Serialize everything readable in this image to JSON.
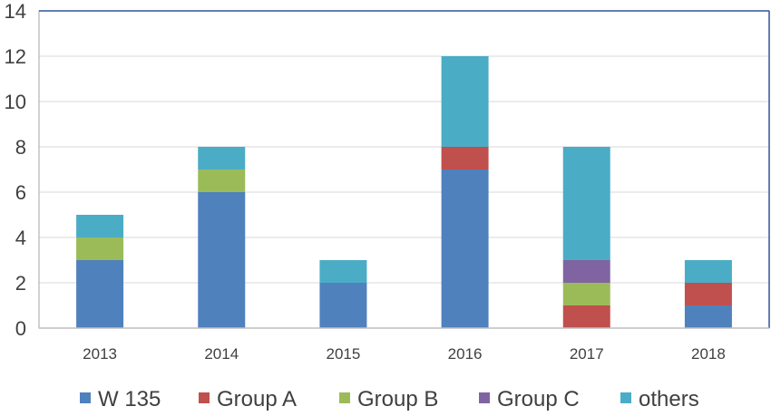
{
  "chart_data": {
    "type": "bar",
    "stacked": true,
    "categories": [
      "2013",
      "2014",
      "2015",
      "2016",
      "2017",
      "2018"
    ],
    "series": [
      {
        "name": "W 135",
        "color": "#4F81BD",
        "values": [
          3,
          6,
          2,
          7,
          0,
          1
        ]
      },
      {
        "name": "Group A",
        "color": "#C0504D",
        "values": [
          0,
          0,
          0,
          1,
          1,
          1
        ]
      },
      {
        "name": "Group B",
        "color": "#9BBB59",
        "values": [
          1,
          1,
          0,
          0,
          1,
          0
        ]
      },
      {
        "name": "Group C",
        "color": "#8064A2",
        "values": [
          0,
          0,
          0,
          0,
          1,
          0
        ]
      },
      {
        "name": "others",
        "color": "#4BACC6",
        "values": [
          1,
          1,
          1,
          4,
          5,
          1
        ]
      }
    ],
    "ylim": [
      0,
      14
    ],
    "yticks": [
      "0",
      "2",
      "4",
      "6",
      "8",
      "10",
      "12",
      "14"
    ],
    "grid": true,
    "legend_position": "bottom",
    "title": "",
    "xlabel": "",
    "ylabel": ""
  }
}
